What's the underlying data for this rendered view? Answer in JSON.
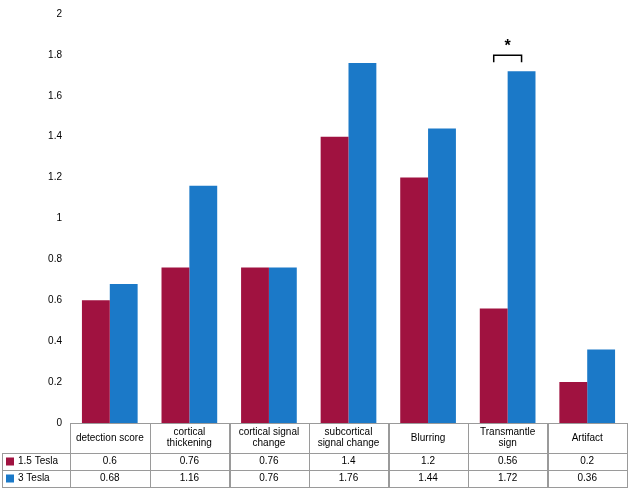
{
  "chart_data": {
    "type": "bar",
    "categories": [
      "detection score",
      "cortical thickening",
      "cortical signal change",
      "subcortical signal change",
      "Blurring",
      "Transmantle sign",
      "Artifact"
    ],
    "series": [
      {
        "name": "1.5 Tesla",
        "color": "#a01240",
        "values": [
          0.6,
          0.76,
          0.76,
          1.4,
          1.2,
          0.56,
          0.2
        ]
      },
      {
        "name": "3 Tesla",
        "color": "#1b79c8",
        "values": [
          0.68,
          1.16,
          0.76,
          1.76,
          1.44,
          1.72,
          0.36
        ]
      }
    ],
    "ylim": [
      0,
      2
    ],
    "yticks": [
      0,
      0.2,
      0.4,
      0.6,
      0.8,
      1,
      1.2,
      1.4,
      1.6,
      1.8,
      2
    ],
    "grid": false,
    "legend": "bottom-left",
    "annotations": [
      {
        "text": "*",
        "category": "Transmantle sign"
      }
    ]
  }
}
